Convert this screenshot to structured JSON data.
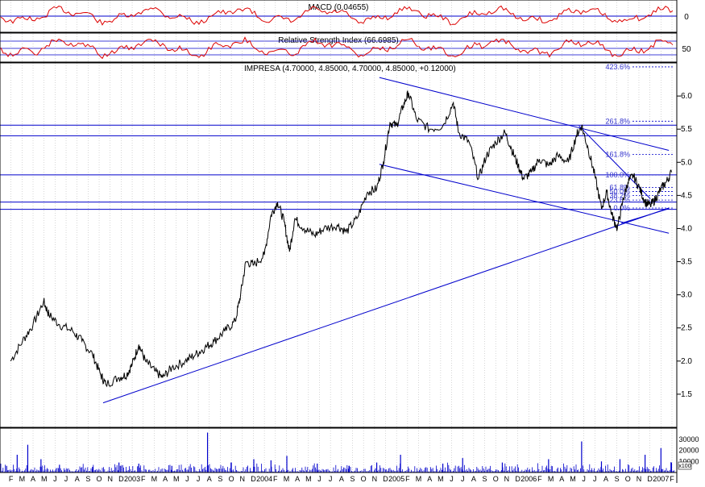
{
  "chart_data": {
    "type": "line",
    "title": "IMPRESA (4.70000, 4.85000, 4.70000, 4.85000, +0.12000)",
    "colors": {
      "background": "#ffffff",
      "price_line": "#000000",
      "trend_line": "#0000cc",
      "fib_text": "#3333cc",
      "indicator_line": "#dd0000",
      "volume_bar": "#0000cc",
      "grid": "#bbbbbb"
    },
    "macd_panel": {
      "label": "MACD (0.04655)",
      "ytick_labels": [
        "0"
      ]
    },
    "rsi_panel": {
      "label": "Relative Strength Index (66.6985)",
      "ytick_labels": [
        "50"
      ]
    },
    "price_panel": {
      "ylim": [
        1.0,
        6.5
      ],
      "yticks": [
        1.5,
        2.0,
        2.5,
        3.0,
        3.5,
        4.0,
        4.5,
        5.0,
        5.5,
        6.0
      ],
      "ytick_labels": [
        "1.5",
        "2.0",
        "2.5",
        "3.0",
        "3.5",
        "4.0",
        "4.5",
        "5.0",
        "5.5",
        "6.0"
      ],
      "grid": "vertical-dotted",
      "close_series": [
        {
          "x": 2002.08,
          "y": 2.0
        },
        {
          "x": 2002.17,
          "y": 2.3
        },
        {
          "x": 2002.25,
          "y": 2.55
        },
        {
          "x": 2002.33,
          "y": 2.9
        },
        {
          "x": 2002.37,
          "y": 2.7
        },
        {
          "x": 2002.45,
          "y": 2.55
        },
        {
          "x": 2002.55,
          "y": 2.45
        },
        {
          "x": 2002.62,
          "y": 2.3
        },
        {
          "x": 2002.7,
          "y": 2.1
        },
        {
          "x": 2002.76,
          "y": 1.8
        },
        {
          "x": 2002.8,
          "y": 1.65
        },
        {
          "x": 2002.9,
          "y": 1.75
        },
        {
          "x": 2002.96,
          "y": 1.8
        },
        {
          "x": 2003.0,
          "y": 1.95
        },
        {
          "x": 2003.05,
          "y": 2.25
        },
        {
          "x": 2003.1,
          "y": 2.0
        },
        {
          "x": 2003.17,
          "y": 1.85
        },
        {
          "x": 2003.23,
          "y": 1.75
        },
        {
          "x": 2003.3,
          "y": 1.9
        },
        {
          "x": 2003.4,
          "y": 2.0
        },
        {
          "x": 2003.48,
          "y": 2.1
        },
        {
          "x": 2003.55,
          "y": 2.2
        },
        {
          "x": 2003.62,
          "y": 2.3
        },
        {
          "x": 2003.7,
          "y": 2.45
        },
        {
          "x": 2003.78,
          "y": 2.6
        },
        {
          "x": 2003.82,
          "y": 3.0
        },
        {
          "x": 2003.86,
          "y": 3.5
        },
        {
          "x": 2003.92,
          "y": 3.45
        },
        {
          "x": 2004.0,
          "y": 3.6
        },
        {
          "x": 2004.05,
          "y": 4.2
        },
        {
          "x": 2004.1,
          "y": 4.4
        },
        {
          "x": 2004.15,
          "y": 4.1
        },
        {
          "x": 2004.19,
          "y": 3.65
        },
        {
          "x": 2004.23,
          "y": 4.15
        },
        {
          "x": 2004.3,
          "y": 4.0
        },
        {
          "x": 2004.38,
          "y": 3.9
        },
        {
          "x": 2004.45,
          "y": 4.0
        },
        {
          "x": 2004.55,
          "y": 4.05
        },
        {
          "x": 2004.62,
          "y": 3.95
        },
        {
          "x": 2004.7,
          "y": 4.15
        },
        {
          "x": 2004.78,
          "y": 4.55
        },
        {
          "x": 2004.85,
          "y": 4.6
        },
        {
          "x": 2004.9,
          "y": 5.0
        },
        {
          "x": 2004.95,
          "y": 5.6
        },
        {
          "x": 2005.0,
          "y": 5.55
        },
        {
          "x": 2005.05,
          "y": 5.85
        },
        {
          "x": 2005.09,
          "y": 6.05
        },
        {
          "x": 2005.15,
          "y": 5.65
        },
        {
          "x": 2005.25,
          "y": 5.5
        },
        {
          "x": 2005.35,
          "y": 5.55
        },
        {
          "x": 2005.43,
          "y": 5.9
        },
        {
          "x": 2005.47,
          "y": 5.45
        },
        {
          "x": 2005.55,
          "y": 5.3
        },
        {
          "x": 2005.62,
          "y": 4.75
        },
        {
          "x": 2005.68,
          "y": 5.1
        },
        {
          "x": 2005.75,
          "y": 5.3
        },
        {
          "x": 2005.82,
          "y": 5.45
        },
        {
          "x": 2005.87,
          "y": 5.2
        },
        {
          "x": 2005.92,
          "y": 4.95
        },
        {
          "x": 2005.96,
          "y": 4.75
        },
        {
          "x": 2006.02,
          "y": 4.85
        },
        {
          "x": 2006.08,
          "y": 5.05
        },
        {
          "x": 2006.15,
          "y": 4.95
        },
        {
          "x": 2006.22,
          "y": 5.1
        },
        {
          "x": 2006.3,
          "y": 5.0
        },
        {
          "x": 2006.36,
          "y": 5.4
        },
        {
          "x": 2006.4,
          "y": 5.55
        },
        {
          "x": 2006.45,
          "y": 5.2
        },
        {
          "x": 2006.5,
          "y": 4.8
        },
        {
          "x": 2006.55,
          "y": 4.3
        },
        {
          "x": 2006.59,
          "y": 4.55
        },
        {
          "x": 2006.63,
          "y": 4.2
        },
        {
          "x": 2006.67,
          "y": 4.0
        },
        {
          "x": 2006.71,
          "y": 4.4
        },
        {
          "x": 2006.75,
          "y": 4.7
        },
        {
          "x": 2006.79,
          "y": 4.8
        },
        {
          "x": 2006.84,
          "y": 4.6
        },
        {
          "x": 2006.88,
          "y": 4.4
        },
        {
          "x": 2006.92,
          "y": 4.35
        },
        {
          "x": 2006.96,
          "y": 4.45
        },
        {
          "x": 2007.0,
          "y": 4.6
        },
        {
          "x": 2007.04,
          "y": 4.7
        },
        {
          "x": 2007.08,
          "y": 4.85
        }
      ],
      "fibonacci": {
        "labels": [
          "423.6%",
          "261.8%",
          "161.8%",
          "100.0%",
          "61.8%",
          "50.0%",
          "38.2%",
          "23.6%",
          "0.0%"
        ],
        "levels": [
          6.44,
          5.62,
          5.12,
          4.81,
          4.62,
          4.56,
          4.5,
          4.43,
          4.31
        ]
      },
      "horizontal_lines": [
        5.56,
        5.4,
        4.81,
        4.4,
        4.29
      ],
      "trend_lines": [
        {
          "x1": 2002.78,
          "y1": 1.37,
          "x2": 2007.06,
          "y2": 4.31
        },
        {
          "x1": 2004.87,
          "y1": 6.28,
          "x2": 2007.06,
          "y2": 5.18
        },
        {
          "x1": 2004.87,
          "y1": 4.97,
          "x2": 2007.06,
          "y2": 3.93
        },
        {
          "x1": 2006.38,
          "y1": 5.55,
          "x2": 2006.92,
          "y2": 4.45
        },
        {
          "x1": 2006.7,
          "y1": 4.08,
          "x2": 2007.06,
          "y2": 4.3
        }
      ]
    },
    "volume_panel": {
      "ytick_labels": [
        "30000",
        "20000",
        "10000"
      ],
      "yticks": [
        30000,
        20000,
        10000
      ],
      "ylim": [
        0,
        40000
      ],
      "unit_label": "x100",
      "bars": [
        {
          "x": 2002.05,
          "v": 6000
        },
        {
          "x": 2002.13,
          "v": 16000
        },
        {
          "x": 2002.21,
          "v": 25000
        },
        {
          "x": 2002.31,
          "v": 12000
        },
        {
          "x": 2002.45,
          "v": 7000
        },
        {
          "x": 2002.7,
          "v": 5000
        },
        {
          "x": 2002.9,
          "v": 9000
        },
        {
          "x": 2003.05,
          "v": 8000
        },
        {
          "x": 2003.3,
          "v": 6000
        },
        {
          "x": 2003.57,
          "v": 36000
        },
        {
          "x": 2003.75,
          "v": 9000
        },
        {
          "x": 2003.92,
          "v": 12000
        },
        {
          "x": 2004.05,
          "v": 11000
        },
        {
          "x": 2004.17,
          "v": 15000
        },
        {
          "x": 2004.4,
          "v": 8000
        },
        {
          "x": 2004.64,
          "v": 6000
        },
        {
          "x": 2004.85,
          "v": 9000
        },
        {
          "x": 2005.03,
          "v": 16000
        },
        {
          "x": 2005.35,
          "v": 8000
        },
        {
          "x": 2005.5,
          "v": 13000
        },
        {
          "x": 2005.8,
          "v": 9000
        },
        {
          "x": 2006.15,
          "v": 12000
        },
        {
          "x": 2006.4,
          "v": 28000
        },
        {
          "x": 2006.55,
          "v": 10000
        },
        {
          "x": 2006.69,
          "v": 12000
        },
        {
          "x": 2006.88,
          "v": 16000
        },
        {
          "x": 2007.0,
          "v": 22000
        },
        {
          "x": 2007.08,
          "v": 9000
        }
      ]
    },
    "x_axis": {
      "xlim": [
        2002.0,
        2007.12
      ],
      "month_labels": [
        "J",
        "F",
        "M",
        "A",
        "M",
        "J",
        "J",
        "A",
        "S",
        "O",
        "N",
        "D"
      ],
      "year_labels": [
        {
          "x": 2003.0,
          "label": "2003"
        },
        {
          "x": 2004.0,
          "label": "2004"
        },
        {
          "x": 2005.0,
          "label": "2005"
        },
        {
          "x": 2006.0,
          "label": "2006"
        },
        {
          "x": 2007.0,
          "label": "2007"
        }
      ]
    }
  }
}
